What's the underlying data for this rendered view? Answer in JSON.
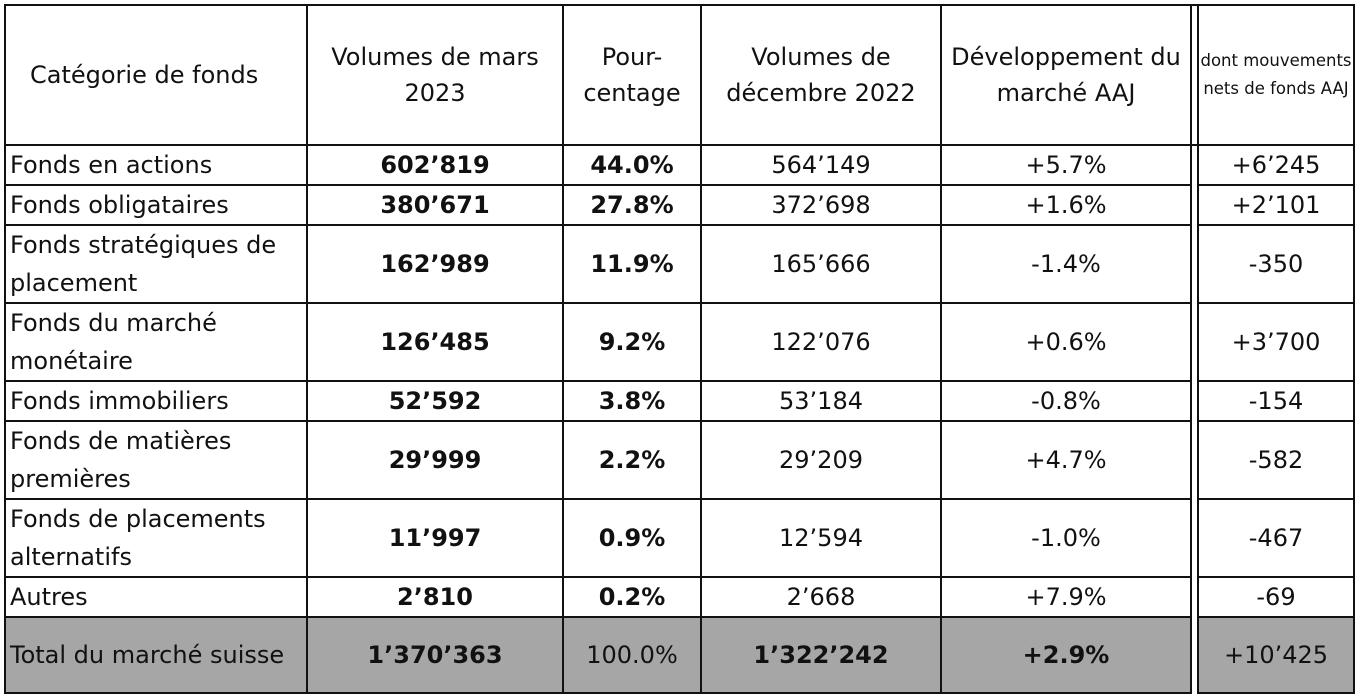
{
  "headers": {
    "category": "Catégorie de fonds",
    "volume_mar": "Volumes de mars 2023",
    "pct": "Pour-centage",
    "volume_dec": "Volumes de décembre 2022",
    "development": "Développement du marché AAJ",
    "net_flows": "dont mouvements nets de fonds AAJ"
  },
  "rows": [
    {
      "category": "Fonds en actions",
      "volume_mar": "602’819",
      "pct": "44.0%",
      "volume_dec": "564’149",
      "development": "+5.7%",
      "net_flows": "+6’245"
    },
    {
      "category": "Fonds obligataires",
      "volume_mar": "380’671",
      "pct": "27.8%",
      "volume_dec": "372’698",
      "development": "+1.6%",
      "net_flows": "+2’101"
    },
    {
      "category": "Fonds stratégiques de placement",
      "volume_mar": "162’989",
      "pct": "11.9%",
      "volume_dec": "165’666",
      "development": "-1.4%",
      "net_flows": "-350"
    },
    {
      "category": "Fonds du marché monétaire",
      "volume_mar": "126’485",
      "pct": "9.2%",
      "volume_dec": "122’076",
      "development": "+0.6%",
      "net_flows": "+3’700"
    },
    {
      "category": "Fonds immobiliers",
      "volume_mar": "52’592",
      "pct": "3.8%",
      "volume_dec": "53’184",
      "development": "-0.8%",
      "net_flows": "-154"
    },
    {
      "category": "Fonds de matières premières",
      "volume_mar": "29’999",
      "pct": "2.2%",
      "volume_dec": "29’209",
      "development": "+4.7%",
      "net_flows": "-582"
    },
    {
      "category": "Fonds de placements alternatifs",
      "volume_mar": "11’997",
      "pct": "0.9%",
      "volume_dec": "12’594",
      "development": "-1.0%",
      "net_flows": "-467"
    },
    {
      "category": "Autres",
      "volume_mar": "2’810",
      "pct": "0.2%",
      "volume_dec": "2’668",
      "development": "+7.9%",
      "net_flows": "-69"
    }
  ],
  "total": {
    "category": "Total du marché suisse",
    "volume_mar": "1’370’363",
    "pct": "100.0%",
    "volume_dec": "1’322’242",
    "development": "+2.9%",
    "net_flows": "+10’425"
  },
  "colors": {
    "total_row_bg": "#a6a6a6",
    "border": "#111111"
  }
}
